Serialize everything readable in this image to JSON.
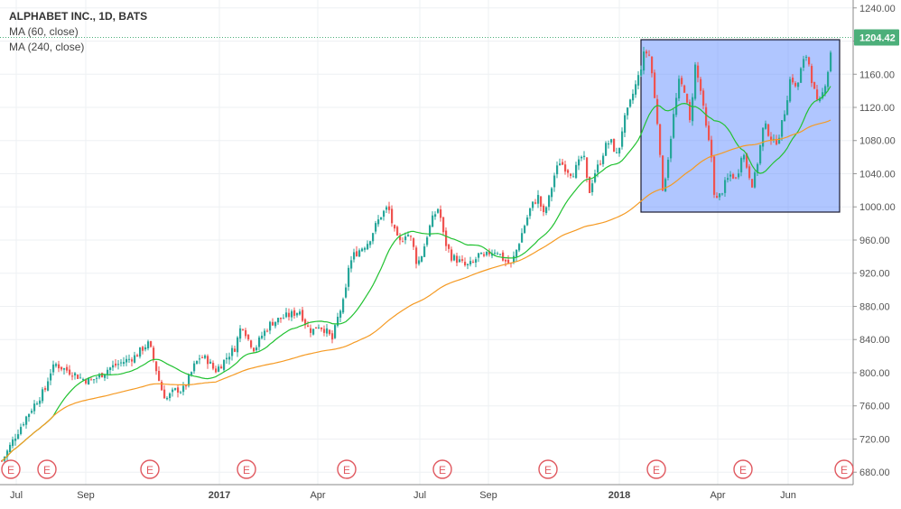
{
  "chart_data": {
    "type": "candlestick",
    "title": "ALPHABET INC., 1D, BATS",
    "indicators": [
      {
        "name": "MA (60, close)",
        "color": "#22c232"
      },
      {
        "name": "MA (240, close)",
        "color": "#f59a23"
      }
    ],
    "x_ticks": [
      "Jul",
      "Sep",
      "2017",
      "Apr",
      "Jul",
      "Sep",
      "2018",
      "Apr",
      "Jun"
    ],
    "y_ticks": [
      680,
      720,
      760,
      800,
      840,
      880,
      920,
      960,
      1000,
      1040,
      1080,
      1120,
      1160,
      1200,
      1240
    ],
    "ylim": [
      665,
      1243
    ],
    "last_price": "1204.42",
    "last_value": 1204.42,
    "earnings_marker": "E",
    "earnings_count": 10,
    "up_color": "#26a69a",
    "down_color": "#ef5350",
    "price_path": [
      [
        0,
        690
      ],
      [
        8,
        705
      ],
      [
        15,
        720
      ],
      [
        28,
        745
      ],
      [
        40,
        765
      ],
      [
        50,
        780
      ],
      [
        55,
        800
      ],
      [
        62,
        810
      ],
      [
        70,
        805
      ],
      [
        80,
        800
      ],
      [
        90,
        793
      ],
      [
        100,
        790
      ],
      [
        110,
        796
      ],
      [
        120,
        805
      ],
      [
        130,
        810
      ],
      [
        140,
        815
      ],
      [
        150,
        820
      ],
      [
        160,
        832
      ],
      [
        165,
        835
      ],
      [
        172,
        808
      ],
      [
        178,
        782
      ],
      [
        184,
        768
      ],
      [
        190,
        775
      ],
      [
        196,
        780
      ],
      [
        202,
        778
      ],
      [
        208,
        790
      ],
      [
        215,
        808
      ],
      [
        222,
        820
      ],
      [
        230,
        815
      ],
      [
        238,
        802
      ],
      [
        245,
        810
      ],
      [
        252,
        820
      ],
      [
        260,
        830
      ],
      [
        268,
        860
      ],
      [
        275,
        840
      ],
      [
        282,
        828
      ],
      [
        290,
        845
      ],
      [
        300,
        860
      ],
      [
        310,
        865
      ],
      [
        322,
        870
      ],
      [
        332,
        875
      ],
      [
        340,
        855
      ],
      [
        346,
        850
      ],
      [
        352,
        858
      ],
      [
        360,
        852
      ],
      [
        368,
        840
      ],
      [
        375,
        870
      ],
      [
        382,
        890
      ],
      [
        386,
        928
      ],
      [
        392,
        942
      ],
      [
        400,
        950
      ],
      [
        408,
        958
      ],
      [
        415,
        975
      ],
      [
        422,
        990
      ],
      [
        430,
        1000
      ],
      [
        436,
        972
      ],
      [
        442,
        955
      ],
      [
        450,
        970
      ],
      [
        456,
        960
      ],
      [
        462,
        930
      ],
      [
        468,
        945
      ],
      [
        474,
        970
      ],
      [
        480,
        988
      ],
      [
        486,
        1000
      ],
      [
        492,
        960
      ],
      [
        500,
        940
      ],
      [
        508,
        935
      ],
      [
        516,
        928
      ],
      [
        524,
        932
      ],
      [
        530,
        942
      ],
      [
        536,
        938
      ],
      [
        542,
        945
      ],
      [
        550,
        948
      ],
      [
        558,
        936
      ],
      [
        566,
        930
      ],
      [
        572,
        948
      ],
      [
        580,
        975
      ],
      [
        588,
        1000
      ],
      [
        596,
        1012
      ],
      [
        602,
        990
      ],
      [
        608,
        1010
      ],
      [
        614,
        1038
      ],
      [
        620,
        1055
      ],
      [
        628,
        1045
      ],
      [
        634,
        1040
      ],
      [
        640,
        1050
      ],
      [
        646,
        1065
      ],
      [
        652,
        1015
      ],
      [
        658,
        1040
      ],
      [
        664,
        1052
      ],
      [
        670,
        1072
      ],
      [
        676,
        1080
      ],
      [
        684,
        1060
      ],
      [
        690,
        1100
      ],
      [
        696,
        1118
      ],
      [
        702,
        1140
      ],
      [
        708,
        1160
      ],
      [
        714,
        1188
      ],
      [
        720,
        1182
      ],
      [
        726,
        1120
      ],
      [
        730,
        1085
      ],
      [
        734,
        1015
      ],
      [
        740,
        1060
      ],
      [
        746,
        1110
      ],
      [
        752,
        1150
      ],
      [
        758,
        1142
      ],
      [
        764,
        1102
      ],
      [
        770,
        1170
      ],
      [
        776,
        1140
      ],
      [
        782,
        1095
      ],
      [
        788,
        1060
      ],
      [
        792,
        1005
      ],
      [
        798,
        1015
      ],
      [
        804,
        1030
      ],
      [
        810,
        1040
      ],
      [
        816,
        1032
      ],
      [
        822,
        1070
      ],
      [
        828,
        1045
      ],
      [
        834,
        1025
      ],
      [
        840,
        1060
      ],
      [
        846,
        1100
      ],
      [
        852,
        1088
      ],
      [
        858,
        1075
      ],
      [
        864,
        1090
      ],
      [
        870,
        1120
      ],
      [
        876,
        1160
      ],
      [
        882,
        1140
      ],
      [
        888,
        1170
      ],
      [
        894,
        1185
      ],
      [
        900,
        1148
      ],
      [
        906,
        1120
      ],
      [
        912,
        1140
      ],
      [
        918,
        1170
      ],
      [
        922,
        1204
      ]
    ]
  }
}
